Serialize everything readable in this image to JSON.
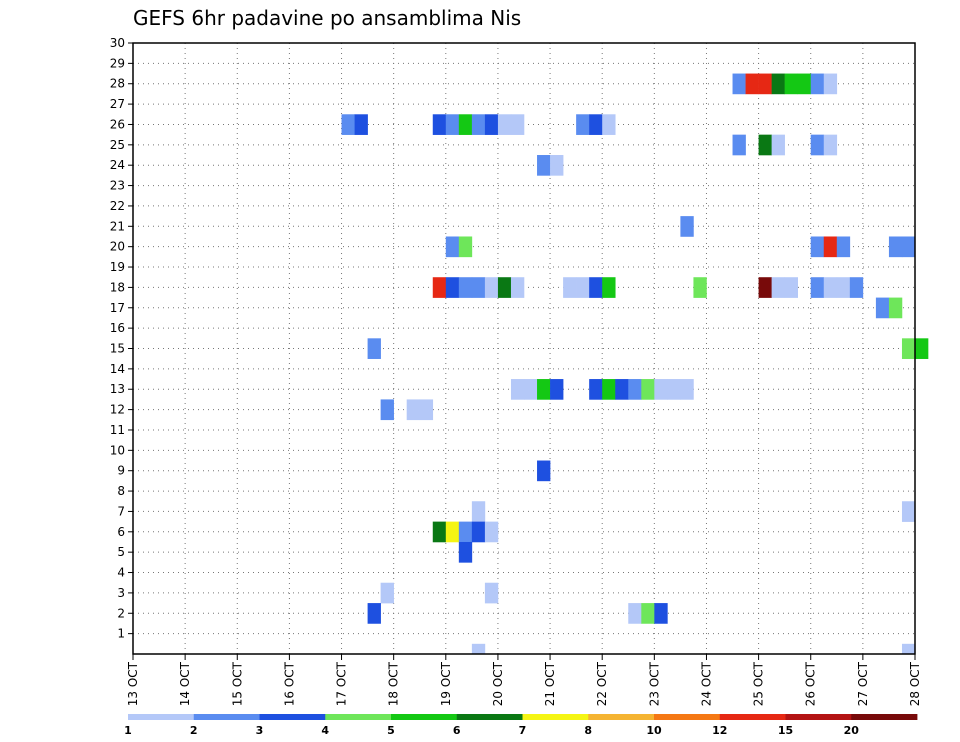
{
  "chart_data": {
    "type": "heatmap",
    "title": "GEFS 6hr padavine po ansamblima Nis",
    "xlabel": "",
    "ylabel": "",
    "x_tick_labels": [
      "13 OCT",
      "14 OCT",
      "15 OCT",
      "16 OCT",
      "17 OCT",
      "18 OCT",
      "19 OCT",
      "20 OCT",
      "21 OCT",
      "22 OCT",
      "23 OCT",
      "24 OCT",
      "25 OCT",
      "26 OCT",
      "27 OCT",
      "28 OCT"
    ],
    "x_range_days": [
      0,
      15
    ],
    "y_range": [
      0,
      30
    ],
    "y_ticks": [
      1,
      2,
      3,
      4,
      5,
      6,
      7,
      8,
      9,
      10,
      11,
      12,
      13,
      14,
      15,
      16,
      17,
      18,
      19,
      20,
      21,
      22,
      23,
      24,
      25,
      26,
      27,
      28,
      29,
      30
    ],
    "grid": true,
    "color_scale": {
      "labels": [
        "1",
        "2",
        "3",
        "4",
        "5",
        "6",
        "7",
        "8",
        "10",
        "12",
        "15",
        "20"
      ],
      "colors": [
        "#b4c8f8",
        "#5a8cf0",
        "#1e50e0",
        "#6ee65a",
        "#14c814",
        "#0a7814",
        "#f5f514",
        "#f5b432",
        "#f57814",
        "#e62814",
        "#b41414",
        "#780a0a"
      ]
    },
    "cells_note": "each cell: member (row), timestep index (6-hour steps after 13 OCT 00Z), color level (1-based)",
    "cells": [
      [
        28,
        46,
        2
      ],
      [
        28,
        47,
        10
      ],
      [
        28,
        48,
        10
      ],
      [
        28,
        49,
        6
      ],
      [
        28,
        50,
        5
      ],
      [
        28,
        51,
        5
      ],
      [
        28,
        52,
        2
      ],
      [
        28,
        53,
        1
      ],
      [
        26,
        16,
        2
      ],
      [
        26,
        17,
        3
      ],
      [
        26,
        23,
        3
      ],
      [
        26,
        24,
        2
      ],
      [
        26,
        25,
        5
      ],
      [
        26,
        26,
        2
      ],
      [
        26,
        27,
        3
      ],
      [
        26,
        28,
        1
      ],
      [
        26,
        29,
        1
      ],
      [
        26,
        34,
        2
      ],
      [
        26,
        35,
        3
      ],
      [
        26,
        36,
        1
      ],
      [
        25,
        46,
        2
      ],
      [
        25,
        48,
        6
      ],
      [
        25,
        49,
        1
      ],
      [
        25,
        52,
        2
      ],
      [
        25,
        53,
        1
      ],
      [
        24,
        31,
        2
      ],
      [
        24,
        32,
        1
      ],
      [
        21,
        42,
        2
      ],
      [
        20,
        24,
        2
      ],
      [
        20,
        25,
        4
      ],
      [
        20,
        52,
        2
      ],
      [
        20,
        53,
        10
      ],
      [
        20,
        54,
        2
      ],
      [
        20,
        58,
        2
      ],
      [
        20,
        59,
        2
      ],
      [
        18,
        23,
        10
      ],
      [
        18,
        24,
        3
      ],
      [
        18,
        25,
        2
      ],
      [
        18,
        26,
        2
      ],
      [
        18,
        27,
        1
      ],
      [
        18,
        28,
        6
      ],
      [
        18,
        29,
        1
      ],
      [
        18,
        33,
        1
      ],
      [
        18,
        34,
        1
      ],
      [
        18,
        35,
        3
      ],
      [
        18,
        36,
        5
      ],
      [
        18,
        43,
        4
      ],
      [
        18,
        48,
        12
      ],
      [
        18,
        49,
        1
      ],
      [
        18,
        50,
        1
      ],
      [
        18,
        52,
        2
      ],
      [
        18,
        53,
        1
      ],
      [
        18,
        54,
        1
      ],
      [
        18,
        55,
        2
      ],
      [
        17,
        57,
        2
      ],
      [
        17,
        58,
        4
      ],
      [
        15,
        18,
        2
      ],
      [
        15,
        59,
        4
      ],
      [
        15,
        60,
        5
      ],
      [
        13,
        29,
        1
      ],
      [
        13,
        30,
        1
      ],
      [
        13,
        31,
        5
      ],
      [
        13,
        32,
        3
      ],
      [
        13,
        35,
        3
      ],
      [
        13,
        36,
        5
      ],
      [
        13,
        37,
        3
      ],
      [
        13,
        38,
        2
      ],
      [
        13,
        39,
        4
      ],
      [
        13,
        40,
        1
      ],
      [
        13,
        41,
        1
      ],
      [
        13,
        42,
        1
      ],
      [
        12,
        19,
        2
      ],
      [
        12,
        21,
        1
      ],
      [
        12,
        22,
        1
      ],
      [
        9,
        31,
        3
      ],
      [
        7,
        26,
        1
      ],
      [
        7,
        59,
        1
      ],
      [
        6,
        23,
        6
      ],
      [
        6,
        24,
        7
      ],
      [
        6,
        25,
        2
      ],
      [
        6,
        26,
        3
      ],
      [
        6,
        27,
        1
      ],
      [
        5,
        25,
        3
      ],
      [
        3,
        19,
        1
      ],
      [
        3,
        27,
        1
      ],
      [
        2,
        18,
        3
      ],
      [
        2,
        38,
        1
      ],
      [
        2,
        39,
        4
      ],
      [
        2,
        40,
        3
      ],
      [
        0,
        26,
        1
      ],
      [
        0,
        59,
        1
      ]
    ]
  }
}
